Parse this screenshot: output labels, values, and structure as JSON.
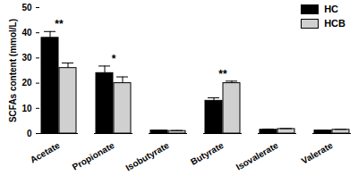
{
  "chart_data": {
    "type": "bar",
    "y_label": "SCFAs content (mmol/L)",
    "categories": [
      "Acetate",
      "Propionate",
      "Isobutyrate",
      "Butyrate",
      "Isovalerate",
      "Valerate"
    ],
    "series": [
      {
        "name": "HC",
        "color": "#000000",
        "values": [
          38,
          24,
          1.2,
          13,
          1.5,
          1.2
        ],
        "errors": [
          2.5,
          2.8,
          0.2,
          1.2,
          0.3,
          0.2
        ]
      },
      {
        "name": "HCB",
        "color": "#d0d0d0",
        "values": [
          26,
          20,
          1.0,
          20,
          1.8,
          1.5
        ],
        "errors": [
          2.0,
          2.5,
          0.2,
          0.8,
          0.2,
          0.2
        ]
      }
    ],
    "significance": [
      "**",
      "*",
      null,
      "**",
      null,
      null
    ],
    "ylim": [
      0,
      50
    ],
    "yticks": [
      0,
      10,
      20,
      30,
      40,
      50
    ],
    "grid": false,
    "legend": "top-right"
  }
}
